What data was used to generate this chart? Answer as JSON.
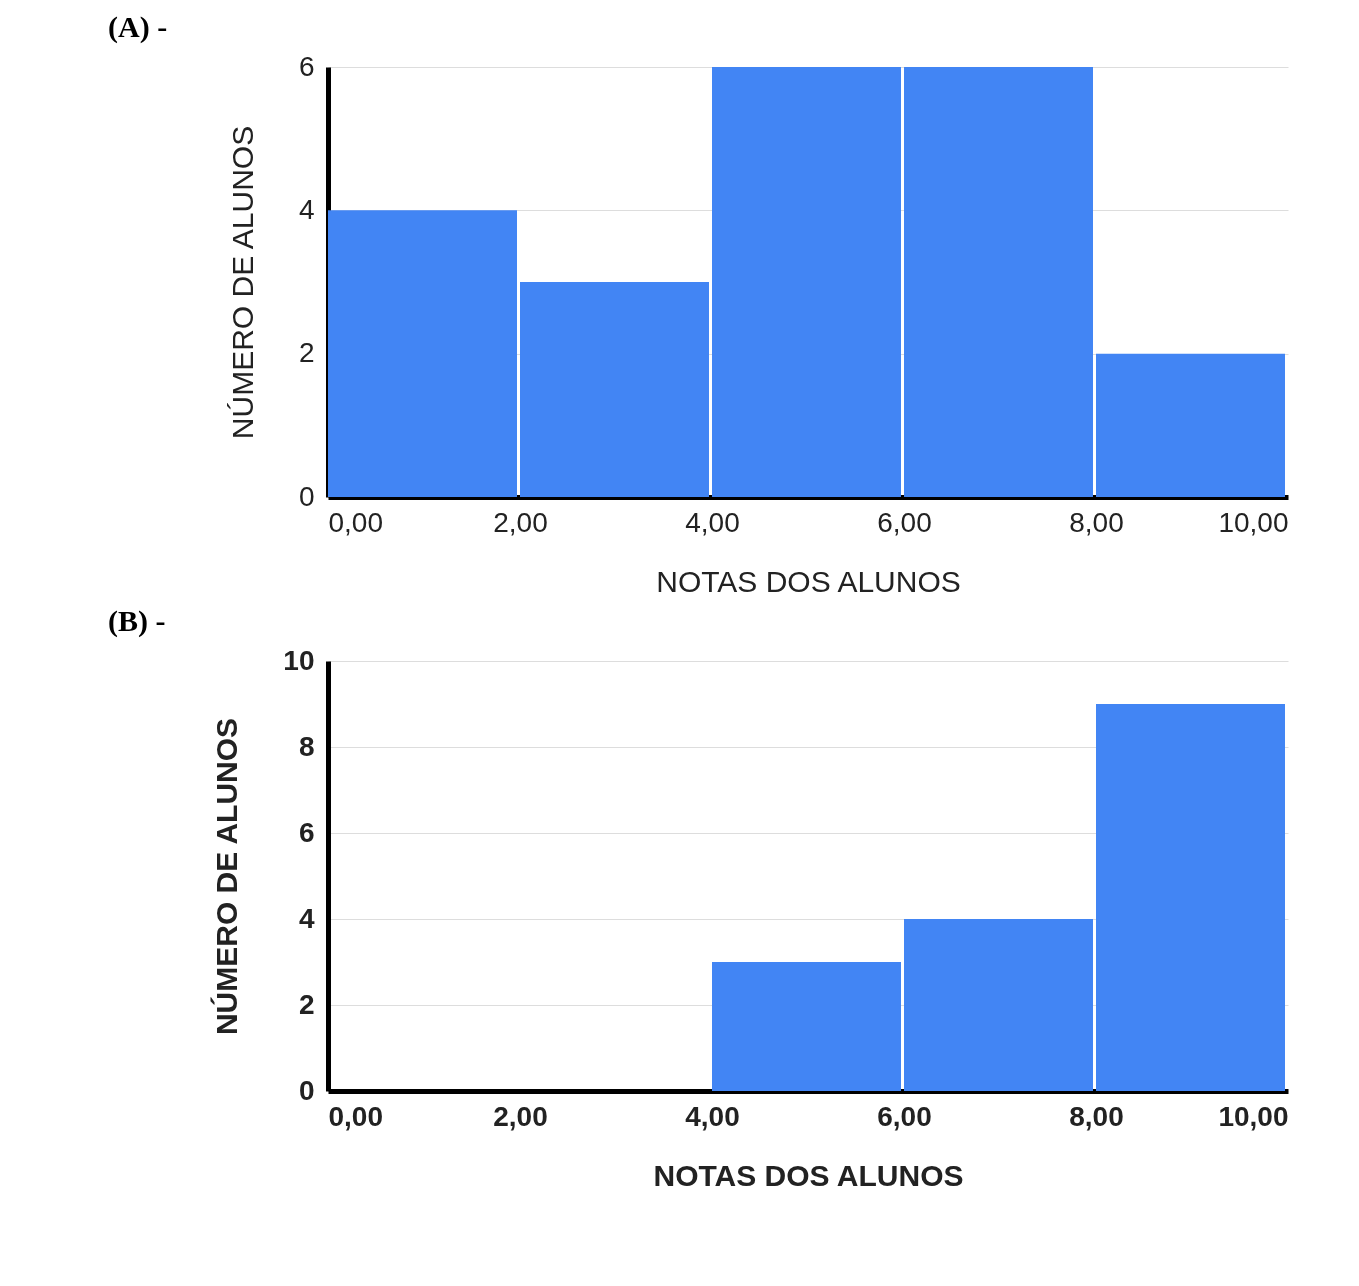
{
  "chart_data": [
    {
      "type": "histogram",
      "title": "(A) -",
      "xlabel": "NOTAS DOS ALUNOS",
      "ylabel": "NÚMERO DE ALUNOS",
      "bins": [
        0,
        2,
        4,
        6,
        8,
        10
      ],
      "values": [
        4,
        3,
        6,
        6,
        2
      ],
      "color": "#4285f4",
      "xlim": [
        0,
        10
      ],
      "xticks": [
        {
          "value": 0,
          "label": "0,00"
        },
        {
          "value": 2,
          "label": "2,00"
        },
        {
          "value": 4,
          "label": "4,00"
        },
        {
          "value": 6,
          "label": "6,00"
        },
        {
          "value": 8,
          "label": "8,00"
        },
        {
          "value": 10,
          "label": "10,00"
        }
      ],
      "ylim": [
        0,
        6
      ],
      "yticks": [
        0,
        2,
        4,
        6
      ],
      "grid": "y"
    },
    {
      "type": "histogram",
      "title": "(B) -",
      "xlabel": "NOTAS DOS ALUNOS",
      "ylabel": "NÚMERO DE ALUNOS",
      "bins": [
        0,
        2,
        4,
        6,
        8,
        10
      ],
      "values": [
        0,
        0,
        3,
        4,
        9
      ],
      "color": "#4285f4",
      "xlim": [
        0,
        10
      ],
      "xticks": [
        {
          "value": 0,
          "label": "0,00"
        },
        {
          "value": 2,
          "label": "2,00"
        },
        {
          "value": 4,
          "label": "4,00"
        },
        {
          "value": 6,
          "label": "6,00"
        },
        {
          "value": 8,
          "label": "8,00"
        },
        {
          "value": 10,
          "label": "10,00"
        }
      ],
      "ylim": [
        0,
        10
      ],
      "yticks": [
        0,
        2,
        4,
        6,
        8,
        10
      ],
      "grid": "y"
    }
  ]
}
